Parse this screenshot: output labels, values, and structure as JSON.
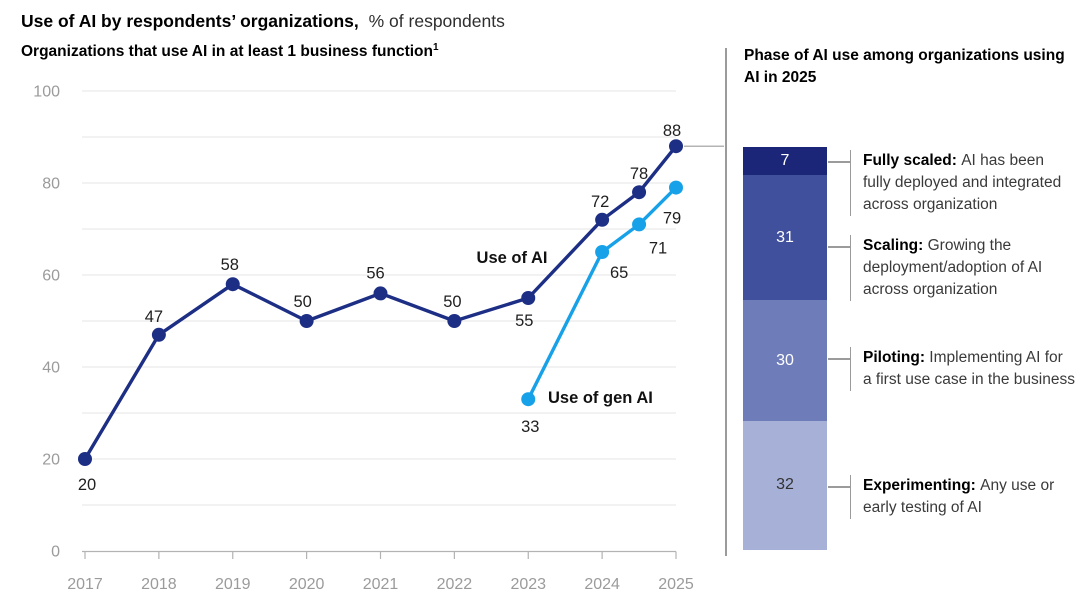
{
  "header": {
    "title_bold": "Use of AI by respondents’ organizations,",
    "title_unit": "% of respondents"
  },
  "left_chart": {
    "subtitle": "Organizations that use AI in at least 1 business function",
    "footnote_marker": "1"
  },
  "right_panel": {
    "heading": "Phase of AI use among organizations using AI in 2025"
  },
  "chart_data": [
    {
      "type": "line",
      "title": "Organizations that use AI in at least 1 business function",
      "unit": "% of respondents",
      "ylim": [
        0,
        100
      ],
      "y_ticks": [
        0,
        20,
        40,
        60,
        80,
        100
      ],
      "x_tick_labels": [
        "2017",
        "2018",
        "2019",
        "2020",
        "2021",
        "2022",
        "2023",
        "2024",
        "2025"
      ],
      "grid": "horizontal, every 10",
      "legend_position": "inline labels next to lines",
      "series": [
        {
          "name": "Use of AI",
          "color": "#1d2e85",
          "x": [
            2017,
            2018,
            2019,
            2020,
            2021,
            2022,
            2023,
            2024,
            2024.5,
            2025
          ],
          "values": [
            20,
            47,
            58,
            50,
            56,
            50,
            55,
            72,
            78,
            88
          ]
        },
        {
          "name": "Use of gen AI",
          "color": "#17a1e8",
          "x": [
            2023,
            2024,
            2024.5,
            2025
          ],
          "values": [
            33,
            65,
            71,
            79
          ]
        }
      ]
    },
    {
      "type": "bar",
      "stacked": true,
      "title": "Phase of AI use among organizations using AI in 2025",
      "total": 100,
      "segments": [
        {
          "label": "Fully scaled",
          "value": 7,
          "color": "#1b2679",
          "desc": "AI has been fully deployed and integrat­ed across organization"
        },
        {
          "label": "Scaling",
          "value": 31,
          "color": "#40509c",
          "desc": "Growing the deployment/adoption of AI across organization"
        },
        {
          "label": "Piloting",
          "value": 30,
          "color": "#6e7dba",
          "desc": "Implementing AI for a first use case in the business"
        },
        {
          "label": "Experimenting",
          "value": 32,
          "color": "#a7b1d8",
          "desc": "Any use or early testing of AI"
        }
      ]
    }
  ]
}
